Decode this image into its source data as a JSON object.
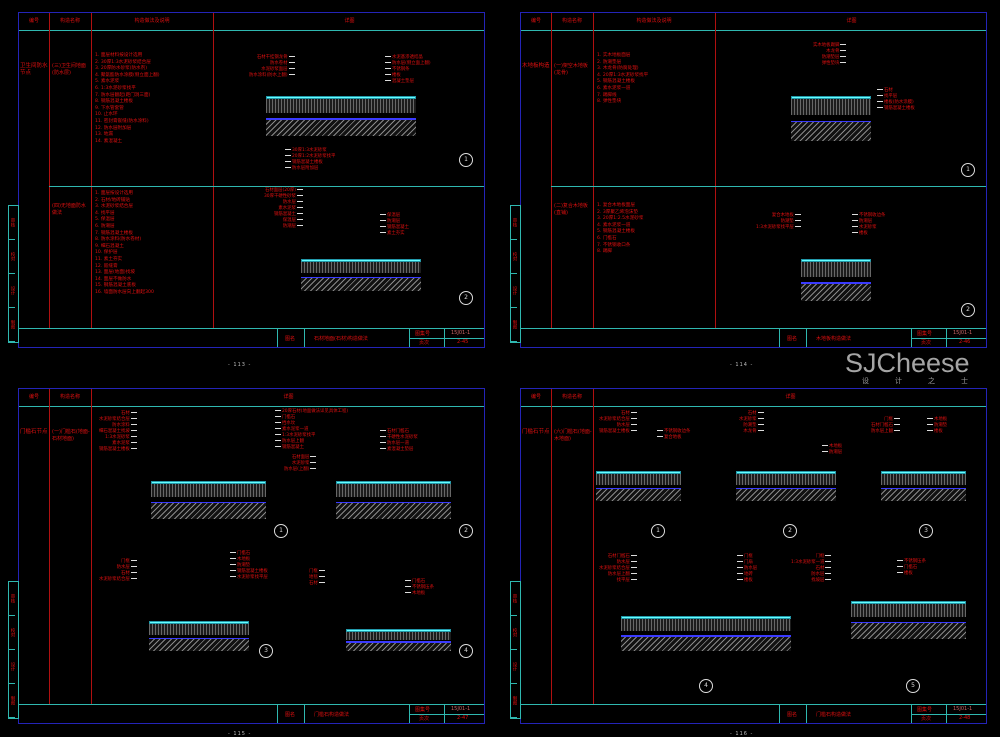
{
  "colors": {
    "background": "#000000",
    "border": "#2424b8",
    "rule": "#2fb8b0",
    "text": "#e01010",
    "separator": "#b01010"
  },
  "sheets": [
    {
      "headers": [
        "编号",
        "构造名称",
        "构造做法及说明",
        "详图"
      ],
      "rows": [
        {
          "code": "卫生间防水节点",
          "name": "(三)卫生间地面(防水层)",
          "steps": [
            "1. 面层材料按设计选用",
            "2. 30厚1:3水泥砂浆结合层",
            "3. 20厚防水砂浆(防水剂)",
            "4. 聚氨酯防水涂膜(侧立面上翻)",
            "5. 素水泥浆",
            "6. 1:3水泥砂浆找平",
            "7. 防水层翻起(距门洞三面)",
            "8. 钢筋混凝土楼板",
            "9. 下水管套管",
            "10. 止水环",
            "11. 密封膏嵌缝(防水涂料)",
            "12. 防水层附加层",
            "13. 地漏",
            "14. 素混凝土"
          ]
        },
        {
          "code": "",
          "name": "(四)无地面防水做法",
          "steps": [
            "1. 面层按设计选用",
            "2. 石材/地砖铺贴",
            "3. 水泥砂浆结合层",
            "4. 找平层",
            "5. 保温层",
            "6. 防潮层",
            "7. 钢筋混凝土楼板",
            "8. 防水涂料(防水卷材)",
            "9. 细石混凝土",
            "10. 保护层",
            "11. 素土夯实",
            "12. 嵌缝膏",
            "13. 面层(地面)找坡",
            "14. 面层不做防水",
            "15. 钢筋混凝土底板",
            "16. 墙面防水层向上翻起300"
          ]
        }
      ],
      "details": [
        {
          "num": "1",
          "left": [
            "石材干挂钢龙骨",
            "防水卷材",
            "水泥砂浆面层",
            "防水涂料(防水上翻)"
          ],
          "right": [
            "水泥基渗透结晶",
            "防水层(侧立面上翻)",
            "不锈钢条",
            "楼板",
            "混凝土垫层"
          ],
          "bottom": [
            "30厚1:3水泥砂浆",
            "20厚1:2水泥砂浆找平",
            "钢筋混凝土楼板",
            "防水层附加层"
          ]
        },
        {
          "num": "2",
          "left": [
            "石材面层(20厚)",
            "30厚干硬性砂浆",
            "防水层",
            "素水泥浆",
            "钢筋混凝土",
            "保温层",
            "防潮层"
          ],
          "right": [
            "保温层",
            "防潮层",
            "钢筋混凝土",
            "素土夯实"
          ],
          "bottom": []
        }
      ],
      "title": {
        "label": "图名",
        "name": "石材地面(石材)构造做法",
        "atlas_label": "图集号",
        "atlas": "15J01-1",
        "page_label": "页次",
        "page": "2-45"
      },
      "side": [
        "审核",
        "校对",
        "设计",
        "制图"
      ],
      "footer": "- 113 -"
    },
    {
      "headers": [
        "编号",
        "构造名称",
        "构造做法及说明",
        "详图"
      ],
      "rows": [
        {
          "code": "木地板构造",
          "name": "(一)架空木地板(龙骨)",
          "steps": [
            "1. 实木地板面层",
            "2. 防潮垫层",
            "3. 木龙骨(防腐处理)",
            "4. 20厚1:3水泥砂浆找平",
            "5. 钢筋混凝土楼板",
            "6. 素水泥浆一道",
            "7. 踢脚线",
            "8. 弹性垫块"
          ]
        },
        {
          "code": "",
          "name": "(二)复合木地板(直铺)",
          "steps": [
            "1. 复合木地板面层",
            "2. 3厚聚乙烯泡沫垫",
            "3. 20厚1:2.5水泥砂浆",
            "4. 素水泥浆一道",
            "5. 钢筋混凝土楼板",
            "6. 门槛石",
            "7. 不锈钢收口条",
            "8. 踢脚"
          ]
        }
      ],
      "details": [
        {
          "num": "1",
          "left": [
            "实木地板踢脚",
            "木龙骨",
            "防潮垫层",
            "弹性垫块"
          ],
          "right": [
            "石材",
            "找平层",
            "楼板(防水涂膜)",
            "钢筋混凝土楼板"
          ],
          "bottom": []
        },
        {
          "num": "2",
          "left": [
            "复合木地板",
            "防潮垫",
            "1:3水泥砂浆找平层"
          ],
          "right": [
            "不锈钢收边条",
            "防潮层",
            "水泥砂浆",
            "楼板"
          ],
          "bottom": []
        }
      ],
      "title": {
        "label": "图名",
        "name": "木地板构造做法",
        "atlas_label": "图集号",
        "atlas": "15J01-1",
        "page_label": "页次",
        "page": "2-46"
      },
      "side": [
        "审核",
        "校对",
        "设计",
        "制图"
      ],
      "footer": "- 114 -"
    },
    {
      "headers": [
        "编号",
        "构造名称",
        "详图"
      ],
      "rows": [
        {
          "code": "门槛石节点",
          "name": "(一)门槛石(地面-石材地面)",
          "steps": []
        }
      ],
      "details": [
        {
          "num": "1",
          "left": [
            "石材",
            "水泥砂浆结合层",
            "防水涂料",
            "细石混凝土找坡",
            "1:3水泥砂浆",
            "素水泥浆",
            "钢筋混凝土楼板"
          ],
          "right": [
            "20厚石材(地面做法详见具体工程)",
            "门槛石",
            "挡水坎",
            "素水泥浆一道",
            "1:3水泥砂浆找平",
            "防水层上翻",
            "钢筋混凝土"
          ],
          "bottom": []
        },
        {
          "num": "2",
          "left": [
            "石材面层",
            "水泥砂浆",
            "防水层(上翻)"
          ],
          "right": [
            "石材门槛石",
            "干硬性水泥砂浆",
            "防水层一道",
            "素混凝土垫层"
          ],
          "bottom": []
        },
        {
          "num": "3",
          "left": [
            "门框",
            "防水层",
            "石材",
            "水泥砂浆结合层"
          ],
          "right": [
            "门槛石",
            "木地板",
            "防潮垫",
            "钢筋混凝土楼板",
            "水泥砂浆找平层"
          ],
          "bottom": []
        },
        {
          "num": "4",
          "left": [
            "门框",
            "地毯",
            "石材"
          ],
          "right": [
            "门槛石",
            "不锈钢压条",
            "木地板"
          ],
          "bottom": []
        }
      ],
      "title": {
        "label": "图名",
        "name": "门槛石构造做法",
        "atlas_label": "图集号",
        "atlas": "15J01-1",
        "page_label": "页次",
        "page": "2-47"
      },
      "side": [
        "审核",
        "校对",
        "设计",
        "制图"
      ],
      "footer": "- 115 -"
    },
    {
      "headers": [
        "编号",
        "构造名称",
        "详图"
      ],
      "rows": [
        {
          "code": "门槛石节点",
          "name": "(六)门槛石(地面-木地面)",
          "steps": []
        }
      ],
      "details": [
        {
          "num": "1",
          "left": [
            "石材",
            "水泥砂浆结合层",
            "防水层",
            "钢筋混凝土楼板"
          ],
          "right": [
            "不锈钢收边条",
            "复合地板"
          ],
          "bottom": []
        },
        {
          "num": "2",
          "left": [
            "石材",
            "水泥砂浆",
            "防潮垫",
            "木龙骨"
          ],
          "right": [
            "木地板",
            "防潮层"
          ],
          "bottom": []
        },
        {
          "num": "3",
          "left": [
            "门框",
            "石材门槛石",
            "防水层上翻"
          ],
          "right": [
            "木地板",
            "防潮垫",
            "楼板"
          ],
          "bottom": []
        },
        {
          "num": "4",
          "left": [
            "石材门槛石",
            "防水层",
            "水泥砂浆结合层",
            "防水层上翻",
            "找平层"
          ],
          "right": [
            "门框",
            "门扇",
            "防水层",
            "地砖",
            "楼板"
          ],
          "bottom": []
        },
        {
          "num": "5",
          "left": [
            "门框",
            "1:3水泥砂浆一道",
            "石材",
            "防水层",
            "找坡层"
          ],
          "right": [
            "不锈钢压条",
            "门槛石",
            "楼板"
          ],
          "bottom": []
        }
      ],
      "title": {
        "label": "图名",
        "name": "门槛石构造做法",
        "atlas_label": "图集号",
        "atlas": "15J01-1",
        "page_label": "页次",
        "page": "2-48"
      },
      "side": [
        "审核",
        "校对",
        "设计",
        "制图"
      ],
      "footer": "- 116 -"
    }
  ],
  "watermark": {
    "brand": "SJCheese",
    "tagline": "设计之士"
  }
}
